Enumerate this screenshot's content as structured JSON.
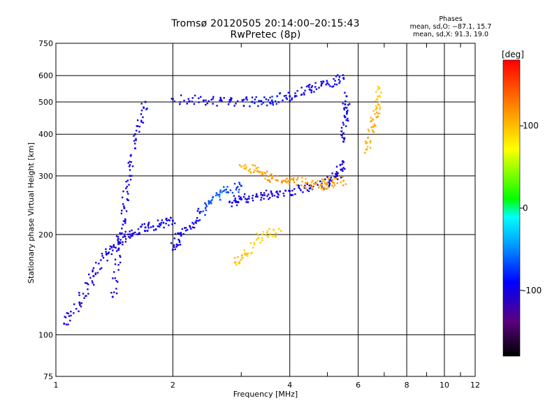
{
  "title": {
    "line1": "Tromsø 20120505 20:14:00–20:15:43",
    "line2": "RwPretec (8p)"
  },
  "stats": {
    "heading": "Phases",
    "row_o": "mean, sd,O: −87.1, 15.7",
    "row_x": "mean, sd,X:  91.3, 19.0"
  },
  "colorbar": {
    "unit_label": "[deg]",
    "range": [
      -180,
      180
    ],
    "ticks": [
      100,
      0,
      -100
    ]
  },
  "chart_data": {
    "type": "scatter",
    "title": "Tromsø 20120505 20:14:00–20:15:43",
    "subtitle": "RwPretec (8p)",
    "xlabel": "Frequency [MHz]",
    "ylabel": "Stationary phase Virtual Height [km]",
    "xscale": "log",
    "yscale": "log",
    "xlim": [
      1,
      12
    ],
    "ylim": [
      75,
      750
    ],
    "xticks": [
      1,
      2,
      4,
      6,
      8,
      10,
      12
    ],
    "yticks": [
      75,
      100,
      200,
      300,
      400,
      500,
      600,
      750
    ],
    "grid": true,
    "color_by": "phase [deg]",
    "series": [
      {
        "x": [
          1.4,
          1.45,
          1.5,
          1.55,
          1.6,
          1.7
        ],
        "y": [
          130,
          180,
          240,
          300,
          400,
          500
        ],
        "phase": [
          -105,
          -100,
          -98,
          -102,
          -100,
          -95
        ]
      },
      {
        "x": [
          1.05,
          1.15,
          1.25,
          1.35,
          1.45,
          1.55,
          1.7,
          1.85,
          2.0
        ],
        "y": [
          108,
          125,
          150,
          175,
          190,
          200,
          210,
          215,
          220
        ],
        "phase": [
          -100,
          -105,
          -100,
          -98,
          -102,
          -100,
          -100,
          -98,
          -95
        ]
      },
      {
        "x": [
          2.0,
          2.1,
          2.3,
          2.5,
          2.7,
          3.0
        ],
        "y": [
          180,
          200,
          220,
          250,
          270,
          280
        ],
        "phase": [
          -100,
          -95,
          -90,
          -70,
          -60,
          -80
        ]
      },
      {
        "x": [
          2.8,
          3.0,
          3.3,
          3.6,
          4.0,
          4.5,
          5.0,
          5.3,
          5.5
        ],
        "y": [
          250,
          255,
          260,
          265,
          270,
          275,
          285,
          300,
          330
        ],
        "phase": [
          -100,
          -100,
          -105,
          -100,
          -100,
          -95,
          -100,
          -105,
          -100
        ]
      },
      {
        "x": [
          5.5,
          5.55,
          5.6
        ],
        "y": [
          380,
          450,
          520
        ],
        "phase": [
          -100,
          -95,
          -90
        ]
      },
      {
        "x": [
          2.0,
          2.4,
          2.8,
          3.2,
          3.6,
          4.0,
          4.5,
          5.0,
          5.5
        ],
        "y": [
          510,
          505,
          500,
          500,
          505,
          520,
          545,
          570,
          590
        ],
        "phase": [
          -100,
          -100,
          -100,
          -90,
          -80,
          -95,
          -100,
          -95,
          -90
        ]
      },
      {
        "x": [
          3.0,
          3.3,
          3.6,
          4.0,
          4.4,
          4.8,
          5.0,
          5.5
        ],
        "y": [
          320,
          310,
          295,
          290,
          285,
          280,
          285,
          290
        ],
        "phase": [
          100,
          110,
          120,
          115,
          110,
          105,
          108,
          112
        ]
      },
      {
        "x": [
          2.9,
          3.1,
          3.4,
          3.8
        ],
        "y": [
          165,
          175,
          200,
          205
        ],
        "phase": [
          100,
          95,
          90,
          88
        ]
      },
      {
        "x": [
          6.3,
          6.5,
          6.7,
          6.8
        ],
        "y": [
          360,
          420,
          480,
          550
        ],
        "phase": [
          105,
          110,
          100,
          95
        ]
      }
    ]
  }
}
